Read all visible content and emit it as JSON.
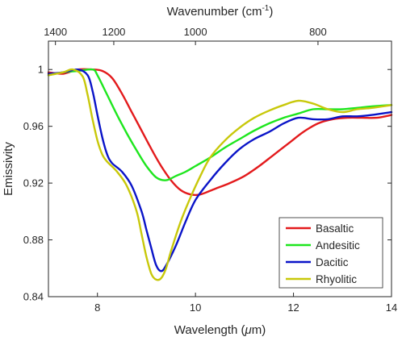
{
  "chart_data": {
    "type": "line",
    "xlabel": "Wavelength (",
    "xlabel_unit_symbol": "μ",
    "xlabel_unit_rest": "m)",
    "ylabel": "Emissivity",
    "top_axis_label": "Wavenumber (cm",
    "top_axis_label_exp": "-1",
    "top_axis_label_close": ")",
    "xlim": [
      7,
      14
    ],
    "ylim": [
      0.84,
      1.02
    ],
    "x_ticks": [
      8,
      10,
      12,
      14
    ],
    "x_tick_labels": [
      "8",
      "10",
      "12",
      "14"
    ],
    "y_ticks": [
      0.84,
      0.88,
      0.92,
      0.96,
      1.0
    ],
    "y_tick_labels": [
      "0.84",
      "0.88",
      "0.92",
      "0.96",
      "1"
    ],
    "top_ticks_wavenumber": [
      1400,
      1200,
      1000,
      800
    ],
    "top_tick_labels": [
      "1400",
      "1200",
      "1000",
      "800"
    ],
    "grid": false,
    "legend_position": "bottom-right",
    "series": [
      {
        "name": "Basaltic",
        "color": "#e31a1c",
        "x": [
          7.0,
          7.3,
          7.6,
          7.9,
          8.1,
          8.3,
          8.5,
          8.7,
          8.9,
          9.1,
          9.3,
          9.5,
          9.7,
          9.9,
          10.1,
          10.4,
          10.7,
          11.0,
          11.3,
          11.6,
          11.9,
          12.2,
          12.5,
          12.8,
          13.1,
          13.4,
          13.7,
          14.0
        ],
        "y": [
          0.998,
          0.997,
          1.0,
          1.0,
          0.999,
          0.994,
          0.983,
          0.97,
          0.957,
          0.944,
          0.932,
          0.922,
          0.915,
          0.912,
          0.912,
          0.916,
          0.92,
          0.925,
          0.932,
          0.94,
          0.948,
          0.956,
          0.962,
          0.965,
          0.966,
          0.966,
          0.966,
          0.968
        ]
      },
      {
        "name": "Andesitic",
        "color": "#1ee61e",
        "x": [
          7.0,
          7.3,
          7.6,
          7.9,
          8.0,
          8.2,
          8.4,
          8.6,
          8.8,
          9.0,
          9.2,
          9.4,
          9.6,
          9.8,
          10.0,
          10.3,
          10.6,
          10.9,
          11.2,
          11.5,
          11.8,
          12.1,
          12.4,
          12.7,
          13.0,
          13.3,
          13.6,
          14.0
        ],
        "y": [
          0.996,
          0.998,
          0.999,
          1.0,
          0.996,
          0.982,
          0.968,
          0.955,
          0.943,
          0.932,
          0.924,
          0.922,
          0.925,
          0.928,
          0.932,
          0.938,
          0.945,
          0.951,
          0.957,
          0.962,
          0.966,
          0.969,
          0.972,
          0.972,
          0.972,
          0.973,
          0.974,
          0.975
        ]
      },
      {
        "name": "Dacitic",
        "color": "#0a14c8",
        "x": [
          7.0,
          7.3,
          7.6,
          7.8,
          7.9,
          8.0,
          8.1,
          8.2,
          8.3,
          8.5,
          8.7,
          8.9,
          9.0,
          9.1,
          9.2,
          9.3,
          9.4,
          9.6,
          9.8,
          10.0,
          10.3,
          10.6,
          10.9,
          11.2,
          11.5,
          11.8,
          12.1,
          12.4,
          12.7,
          13.0,
          13.3,
          13.6,
          14.0
        ],
        "y": [
          0.997,
          0.998,
          1.0,
          0.996,
          0.985,
          0.968,
          0.952,
          0.94,
          0.934,
          0.928,
          0.918,
          0.9,
          0.887,
          0.874,
          0.862,
          0.858,
          0.862,
          0.876,
          0.893,
          0.908,
          0.922,
          0.934,
          0.944,
          0.951,
          0.956,
          0.962,
          0.966,
          0.965,
          0.965,
          0.967,
          0.967,
          0.968,
          0.97
        ]
      },
      {
        "name": "Rhyolitic",
        "color": "#c8c80a",
        "x": [
          7.0,
          7.3,
          7.5,
          7.7,
          7.8,
          7.9,
          8.0,
          8.1,
          8.2,
          8.4,
          8.6,
          8.8,
          8.9,
          9.0,
          9.1,
          9.2,
          9.3,
          9.4,
          9.5,
          9.7,
          9.9,
          10.1,
          10.3,
          10.6,
          10.9,
          11.2,
          11.5,
          11.8,
          12.1,
          12.4,
          12.7,
          13.0,
          13.3,
          13.6,
          14.0
        ],
        "y": [
          0.996,
          0.998,
          1.0,
          0.995,
          0.982,
          0.965,
          0.95,
          0.94,
          0.935,
          0.928,
          0.918,
          0.9,
          0.884,
          0.868,
          0.856,
          0.852,
          0.853,
          0.86,
          0.872,
          0.893,
          0.91,
          0.925,
          0.938,
          0.95,
          0.959,
          0.966,
          0.971,
          0.975,
          0.978,
          0.976,
          0.972,
          0.97,
          0.972,
          0.973,
          0.975
        ]
      }
    ]
  }
}
